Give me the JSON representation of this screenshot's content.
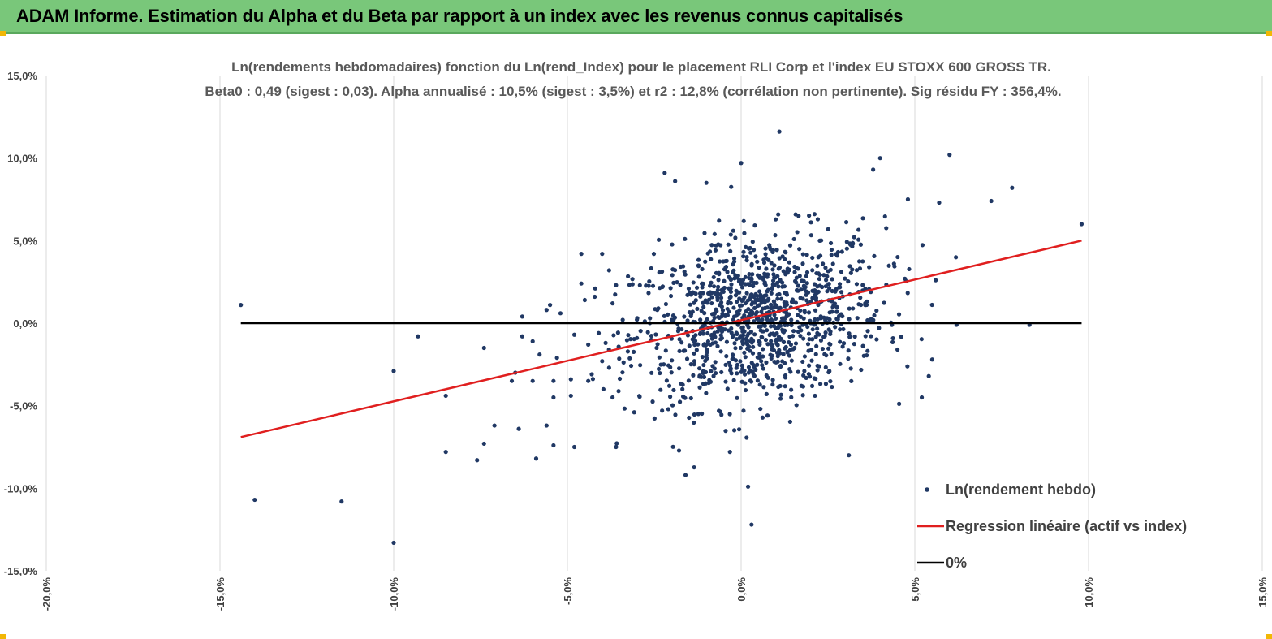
{
  "header": {
    "title": "ADAM Informe. Estimation du Alpha et du Beta par rapport à un index avec les revenus connus capitalisés",
    "banner_color": "#79c77a",
    "accent_color": "#f2b705"
  },
  "chart_data": {
    "type": "scatter",
    "title_line1": "Ln(rendements hebdomadaires) fonction du Ln(rend_Index) pour le placement RLI Corp et l'index EU STOXX 600 GROSS TR.",
    "title_line2": "Beta0 : 0,49 (sigest : 0,03). Alpha annualisé : 10,5% (sigest : 3,5%) et r2 : 12,8% (corrélation non pertinente). Sig résidu FY : 356,4%.",
    "xlim": [
      -0.2,
      0.15
    ],
    "ylim": [
      -0.15,
      0.15
    ],
    "x_ticks": [
      -0.2,
      -0.15,
      -0.1,
      -0.05,
      0.0,
      0.05,
      0.1,
      0.15
    ],
    "x_tick_labels": [
      "-20,0%",
      "-15,0%",
      "-10,0%",
      "-5,0%",
      "0,0%",
      "5,0%",
      "10,0%",
      "15,0%"
    ],
    "y_ticks": [
      0.15,
      0.1,
      0.05,
      0.0,
      -0.05,
      -0.1,
      -0.15
    ],
    "y_tick_labels": [
      "15,0%",
      "10,0%",
      "5,0%",
      "0,0%",
      "-5,0%",
      "-10,0%",
      "-15,0%"
    ],
    "grid": "vertical",
    "legend_position": "bottom-right",
    "colors": {
      "points": "#203864",
      "regression": "#e01f1f",
      "zero": "#000000",
      "grid": "#d9d9d9"
    },
    "series": [
      {
        "name": "Ln(rendement hebdo)",
        "kind": "scatter",
        "points": [
          [
            -0.144,
            0.011
          ],
          [
            -0.14,
            -0.107
          ],
          [
            -0.115,
            -0.108
          ],
          [
            -0.1,
            -0.133
          ],
          [
            -0.1,
            -0.029
          ],
          [
            -0.093,
            -0.008
          ],
          [
            -0.085,
            -0.044
          ],
          [
            -0.085,
            -0.078
          ],
          [
            -0.076,
            -0.083
          ],
          [
            -0.074,
            -0.073
          ],
          [
            -0.074,
            -0.015
          ],
          [
            -0.071,
            -0.062
          ],
          [
            -0.066,
            -0.035
          ],
          [
            -0.065,
            -0.03
          ],
          [
            -0.064,
            -0.064
          ],
          [
            -0.063,
            0.004
          ],
          [
            -0.063,
            -0.008
          ],
          [
            -0.06,
            -0.011
          ],
          [
            -0.06,
            -0.035
          ],
          [
            -0.059,
            -0.082
          ],
          [
            -0.058,
            -0.019
          ],
          [
            -0.056,
            -0.062
          ],
          [
            -0.056,
            0.008
          ],
          [
            -0.055,
            0.011
          ],
          [
            -0.054,
            -0.074
          ],
          [
            -0.054,
            -0.045
          ],
          [
            -0.054,
            -0.035
          ],
          [
            -0.053,
            -0.021
          ],
          [
            -0.052,
            0.006
          ],
          [
            -0.049,
            -0.034
          ],
          [
            -0.049,
            -0.044
          ],
          [
            -0.048,
            -0.075
          ],
          [
            -0.048,
            -0.007
          ],
          [
            -0.046,
            0.024
          ],
          [
            -0.046,
            0.042
          ],
          [
            -0.045,
            0.014
          ],
          [
            -0.044,
            -0.013
          ],
          [
            -0.044,
            -0.035
          ],
          [
            -0.043,
            -0.031
          ],
          [
            -0.042,
            0.021
          ],
          [
            -0.041,
            -0.006
          ],
          [
            -0.04,
            -0.023
          ],
          [
            -0.04,
            0.042
          ],
          [
            -0.039,
            -0.012
          ],
          [
            -0.038,
            -0.027
          ],
          [
            -0.038,
            0.032
          ],
          [
            -0.037,
            -0.045
          ],
          [
            -0.037,
            0.012
          ],
          [
            -0.036,
            -0.075
          ],
          [
            -0.036,
            0.023
          ]
        ]
      },
      {
        "name": "Regression linéaire (actif vs index)",
        "kind": "line",
        "from": [
          -0.144,
          -0.069
        ],
        "to": [
          0.098,
          0.05
        ]
      },
      {
        "name": "0%",
        "kind": "line",
        "from": [
          -0.144,
          0.0
        ],
        "to": [
          0.098,
          0.0
        ]
      }
    ],
    "dense_cloud": {
      "center": [
        0.005,
        0.003
      ],
      "spread": [
        0.018,
        0.025
      ],
      "count": 1150
    }
  }
}
